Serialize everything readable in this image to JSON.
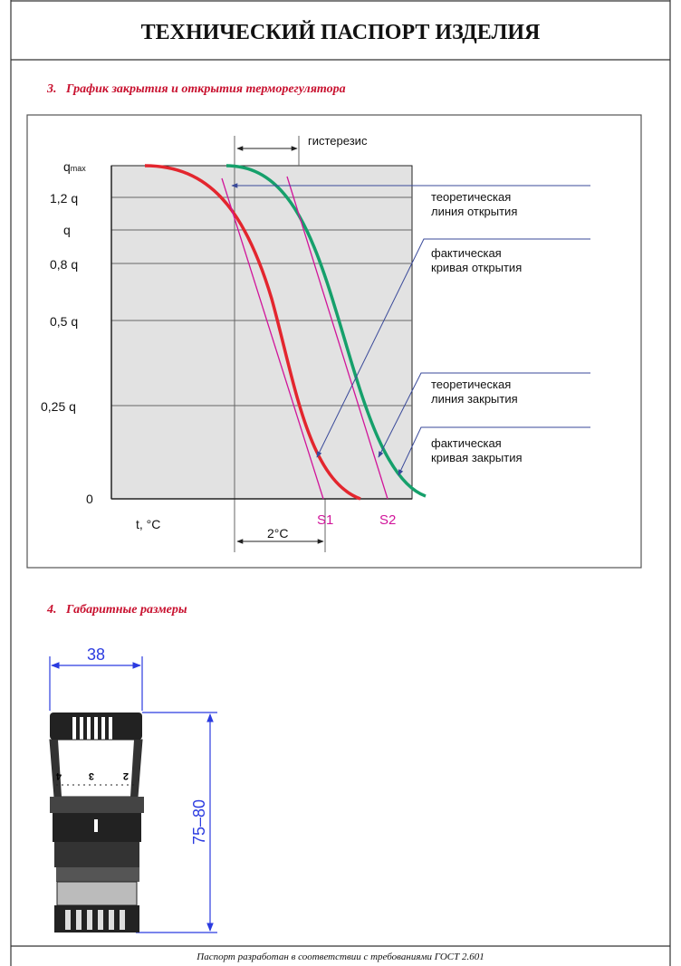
{
  "header": {
    "title": "ТЕХНИЧЕСКИЙ ПАСПОРТ ИЗДЕЛИЯ"
  },
  "section3": {
    "title": "3.   График закрытия и открытия терморегулятора",
    "diagram": {
      "y_max_label": {
        "base": "q",
        "sub": "max"
      },
      "y_labels": [
        "1,2 q",
        "q",
        "0,8 q",
        "0,5 q",
        "0,25 q",
        "0"
      ],
      "x_axis_label": "t, °C",
      "hysteresis": "гистерезис",
      "delta": "2°C",
      "s1": "S1",
      "s2": "S2",
      "notes": [
        [
          "теоретическая",
          "линия открытия"
        ],
        [
          "фактическая",
          "кривая открытия"
        ],
        [
          "теоретическая",
          "линия закрытия"
        ],
        [
          "фактическая",
          "кривая закрытия"
        ]
      ]
    }
  },
  "section4": {
    "title": "4.   Габаритные размеры",
    "width_label": "38",
    "height_label": "75–80",
    "dial_marks": [
      "4",
      "3",
      "2"
    ]
  },
  "footer": {
    "text": "Паспорт разработан в соответствии с требованиями ГОСТ 2.601"
  }
}
